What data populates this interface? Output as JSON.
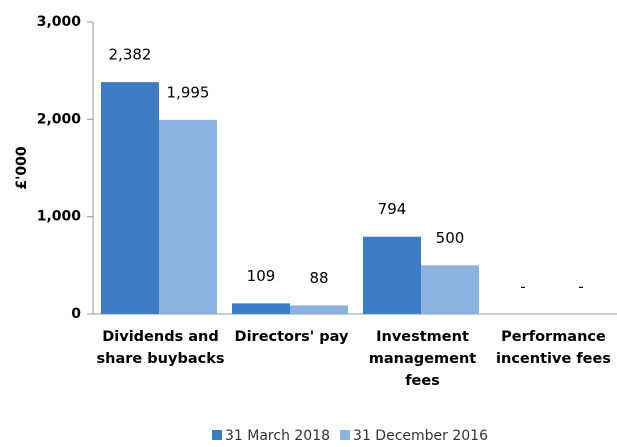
{
  "chart_data": {
    "type": "bar",
    "categories": [
      "Dividends and share buybacks",
      "Directors' pay",
      "Investment management fees",
      "Performance incentive fees"
    ],
    "series": [
      {
        "name": "31 March 2018",
        "color": "#3d7cc2",
        "values": [
          2382,
          109,
          794,
          0
        ],
        "value_labels": [
          "2,382",
          "109",
          "794",
          "-"
        ]
      },
      {
        "name": "31 December 2016",
        "color": "#8cb3e0",
        "values": [
          1995,
          88,
          500,
          0
        ],
        "value_labels": [
          "1,995",
          "88",
          "500",
          "-"
        ]
      }
    ],
    "ylabel": "£'000",
    "ylim": [
      0,
      3000
    ],
    "yticks": [
      0,
      {
        "value": 1000,
        "label": "1,000"
      },
      {
        "value": 2000,
        "label": "2,000"
      },
      {
        "value": 3000,
        "label": "3,000"
      }
    ],
    "grid": false,
    "legend": "bottom"
  }
}
